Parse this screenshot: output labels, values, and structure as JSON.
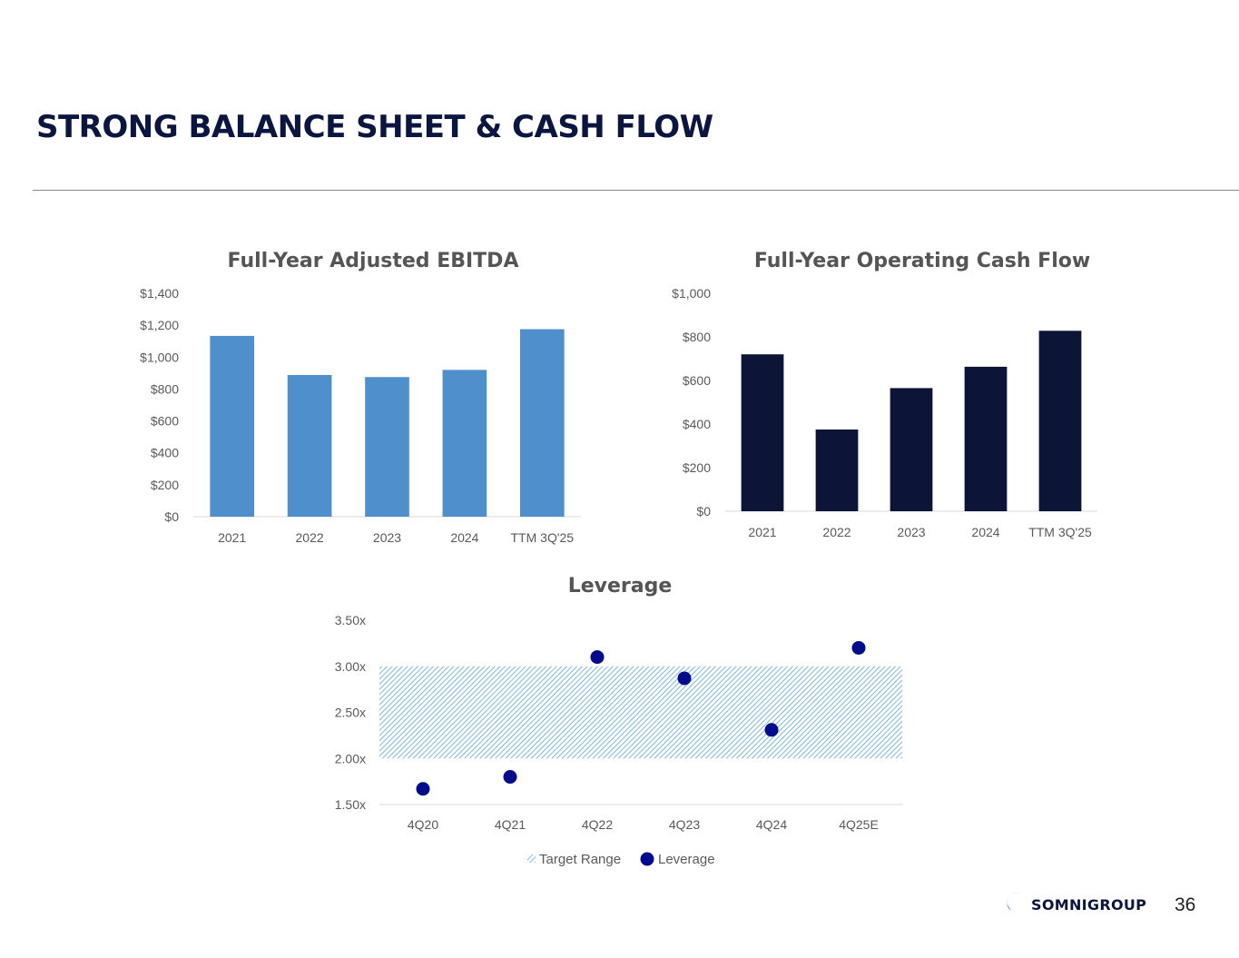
{
  "header": {
    "title": "STRONG BALANCE SHEET & CASH FLOW"
  },
  "footer": {
    "page_number": "36",
    "logo_text": "SOMNIGROUP"
  },
  "chart_data": [
    {
      "id": "ebitda",
      "type": "bar",
      "title": "Full-Year Adjusted EBITDA",
      "categories": [
        "2021",
        "2022",
        "2023",
        "2024",
        "TTM 3Q'25"
      ],
      "values": [
        1133,
        888,
        875,
        920,
        1175
      ],
      "ylim": [
        0,
        1400
      ],
      "yticks": [
        0,
        200,
        400,
        600,
        800,
        1000,
        1200,
        1400
      ],
      "ytick_labels": [
        "$0",
        "$200",
        "$400",
        "$600",
        "$800",
        "$1,000",
        "$1,200",
        "$1,400"
      ],
      "color": "#4f8fcb",
      "grid": false
    },
    {
      "id": "ocf",
      "type": "bar",
      "title": "Full-Year Operating Cash Flow",
      "categories": [
        "2021",
        "2022",
        "2023",
        "2024",
        "TTM 3Q'25"
      ],
      "values": [
        720,
        375,
        565,
        663,
        828
      ],
      "ylim": [
        0,
        1000
      ],
      "yticks": [
        0,
        200,
        400,
        600,
        800,
        1000
      ],
      "ytick_labels": [
        "$0",
        "$200",
        "$400",
        "$600",
        "$800",
        "$1,000"
      ],
      "color": "#0c1438",
      "grid": false
    },
    {
      "id": "leverage",
      "type": "scatter",
      "title": "Leverage",
      "categories": [
        "4Q20",
        "4Q21",
        "4Q22",
        "4Q23",
        "4Q24",
        "4Q25E"
      ],
      "series": [
        {
          "name": "Leverage",
          "values": [
            1.67,
            1.8,
            3.1,
            2.87,
            2.31,
            3.2
          ],
          "color": "#000c8c"
        }
      ],
      "target_range": {
        "name": "Target Range",
        "low": 2.0,
        "high": 3.0,
        "color": "#5ba6d6"
      },
      "ylim": [
        1.5,
        3.5
      ],
      "yticks": [
        1.5,
        2.0,
        2.5,
        3.0,
        3.5
      ],
      "ytick_labels": [
        "1.50x",
        "2.00x",
        "2.50x",
        "3.00x",
        "3.50x"
      ],
      "legend_position": "bottom",
      "grid": false
    }
  ]
}
